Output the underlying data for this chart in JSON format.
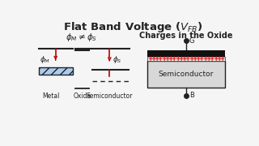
{
  "title": "Flat Band Voltage ($V_{FB}$)",
  "title_fontsize": 9.5,
  "bg_color": "#f5f5f5",
  "left_subtitle": "$\\phi_M \\neq \\phi_S$",
  "right_subtitle": "Charges in the Oxide",
  "metal_label": "Metal",
  "oxide_label": "Oxide",
  "semi_label": "Semiconductor",
  "phi_M_label": "$\\phi_M$",
  "phi_S_label": "$\\phi_S$",
  "G_label": "G",
  "B_label": "B",
  "arrow_color": "#bb0000",
  "line_color": "#222222",
  "plus_color": "#cc0000",
  "gate_color": "#111111",
  "semi_fill": "#d8d8d8",
  "semi_border": "#555555",
  "metal_fill": "#aaccee",
  "oxide_line_color": "#444444"
}
